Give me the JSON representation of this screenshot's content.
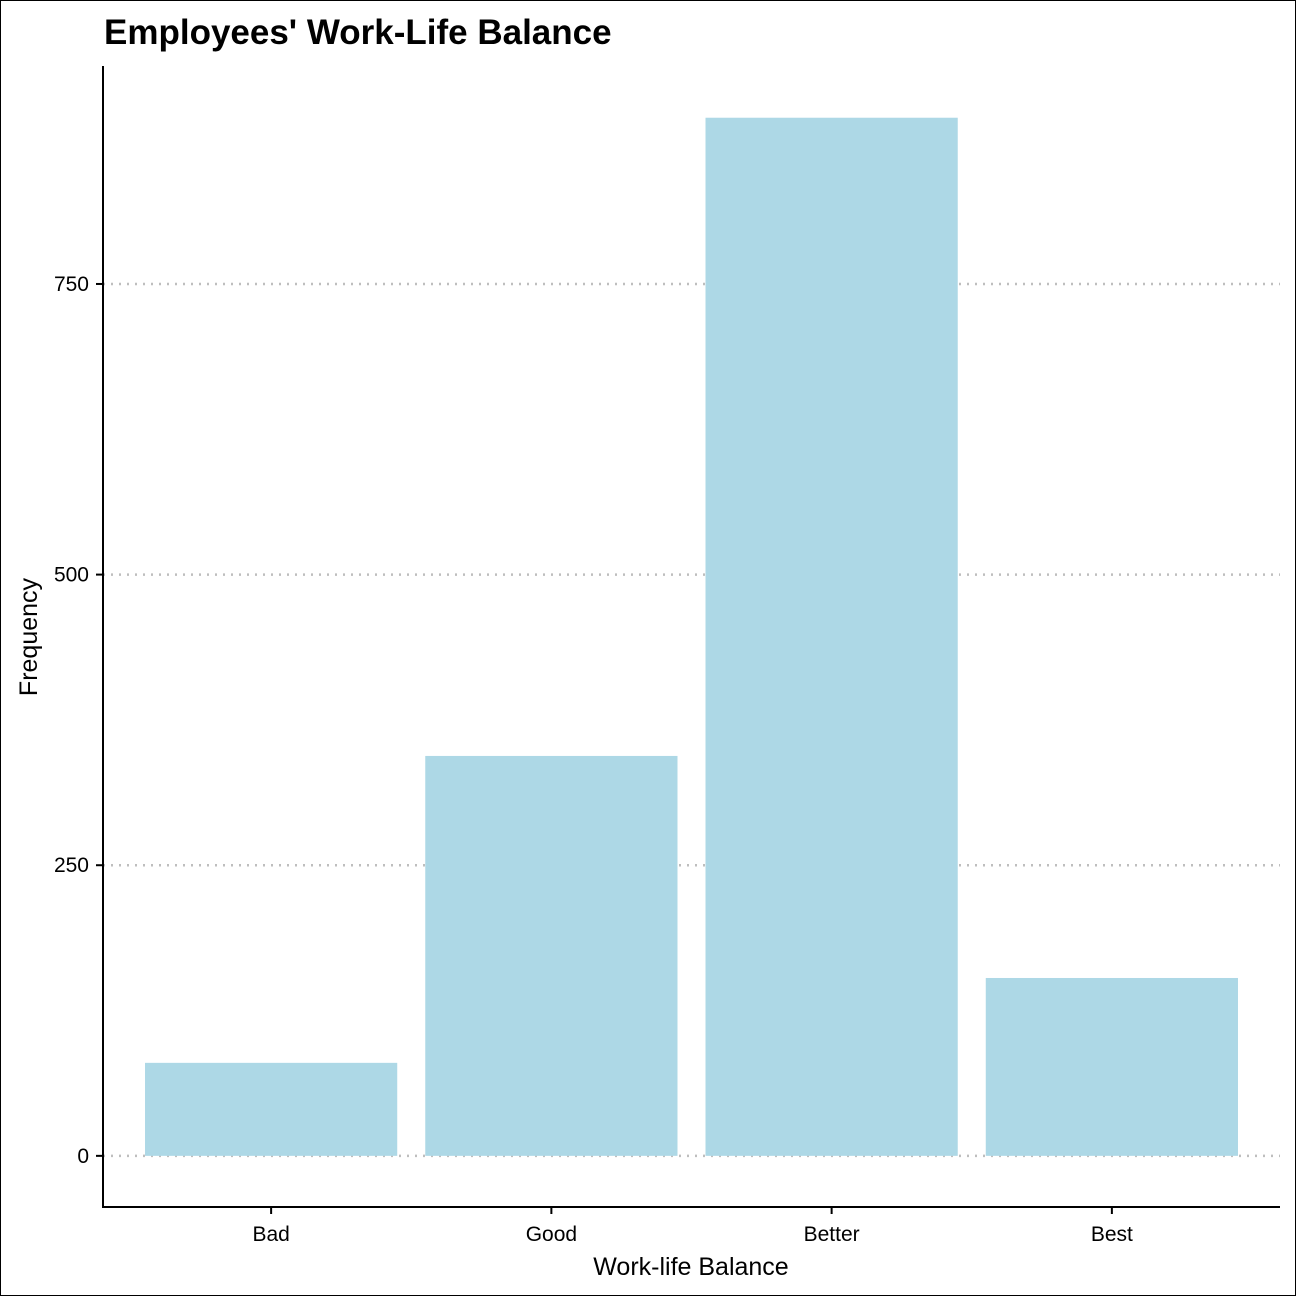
{
  "chart_data": {
    "type": "bar",
    "title": "Employees' Work-Life Balance",
    "xlabel": "Work-life Balance",
    "ylabel": "Frequency",
    "categories": [
      "Bad",
      "Good",
      "Better",
      "Best"
    ],
    "values": [
      80,
      344,
      893,
      153
    ],
    "ylim": [
      -44,
      937.5
    ],
    "yticks": [
      0,
      250,
      500,
      750
    ],
    "ytick_labels": [
      "0",
      "250",
      "500",
      "750"
    ],
    "grid": "horizontal dotted",
    "legend": "none",
    "bar_color": "#ADD8E6",
    "grid_color": "#BEBEBE"
  }
}
